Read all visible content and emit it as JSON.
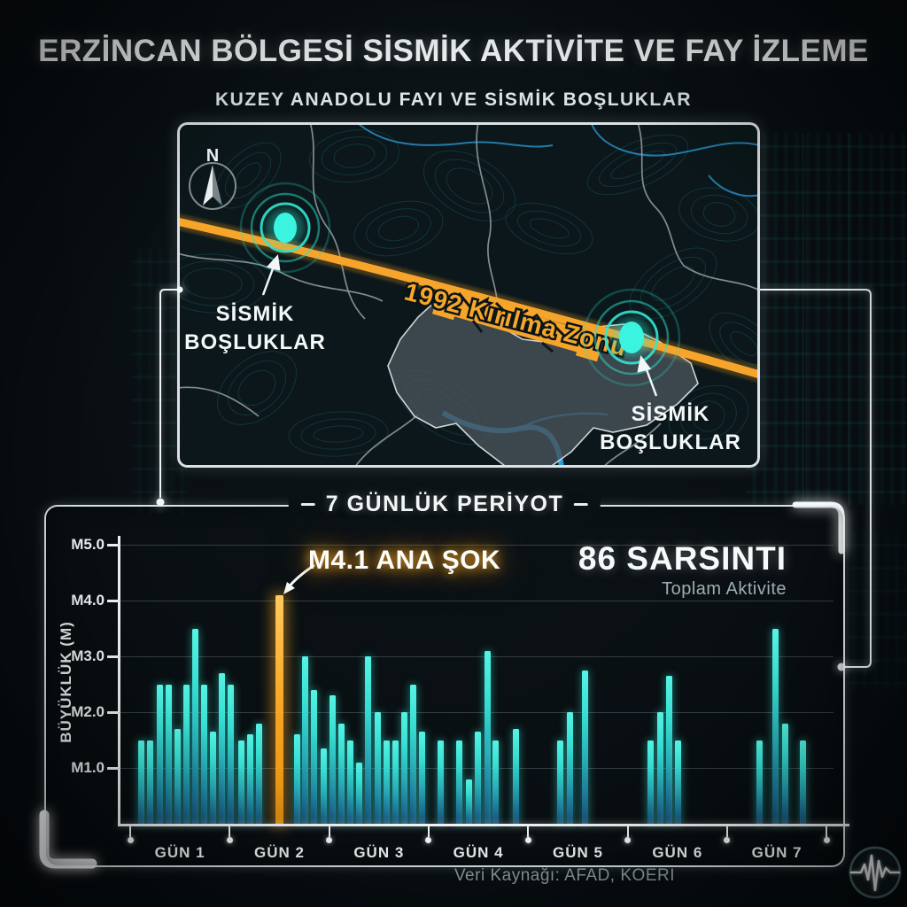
{
  "header": {
    "title": "ERZİNCAN BÖLGESİ SİSMİK AKTİVİTE VE FAY İZLEME",
    "subtitle": "KUZEY ANADOLU FAYI VE SİSMİK BOŞLUKLAR"
  },
  "map": {
    "compass_n": "N",
    "gap_label": {
      "line1": "SİSMİK",
      "line2": "BOŞLUKLAR"
    },
    "fracture_label": "1992 Kırılma Zonu",
    "features": {
      "fault_name": "Kuzey Anadolu Fayı",
      "seismic_gap_count": 2
    },
    "colors": {
      "fault_orange": "#f7a52a",
      "gap_teal": "#38f2de",
      "river_blue": "#2aa3e8",
      "border_gray": "#9aa4a8"
    }
  },
  "chart_data": {
    "type": "bar",
    "title": "7 GÜNLÜK PERİYOT",
    "ylabel": "BÜYÜKLÜK (M)",
    "y_ticks": [
      "M5.0",
      "M4.0",
      "M3.0",
      "M2.0",
      "M1.0"
    ],
    "y_tick_values": [
      5,
      4,
      3,
      2,
      1
    ],
    "ylim": [
      0,
      5
    ],
    "categories": [
      "GÜN 1",
      "GÜN 2",
      "GÜN 3",
      "GÜN 4",
      "GÜN 5",
      "GÜN 6",
      "GÜN 7"
    ],
    "annotations": {
      "mainshock_label": "M4.1 ANA ŞOK",
      "mainshock_magnitude": 4.1,
      "mainshock_day": "GÜN 2",
      "total_label": "86 SARSINTI",
      "total_sublabel": "Toplam Aktivite"
    },
    "series_note": "each bar = one earthquake magnitude (M); x = position in 7-day window (px), third item 1 = mainshock",
    "bars": [
      [
        157,
        1.5
      ],
      [
        167,
        1.5
      ],
      [
        178,
        2.5
      ],
      [
        188,
        2.5
      ],
      [
        198,
        1.7
      ],
      [
        208,
        2.5
      ],
      [
        218,
        3.5
      ],
      [
        228,
        2.5
      ],
      [
        238,
        1.65
      ],
      [
        248,
        2.7
      ],
      [
        258,
        2.5
      ],
      [
        270,
        1.5
      ],
      [
        280,
        1.6
      ],
      [
        290,
        1.8
      ],
      [
        313,
        4.1,
        1
      ],
      [
        333,
        1.6
      ],
      [
        342,
        3.0
      ],
      [
        352,
        2.4
      ],
      [
        363,
        1.35
      ],
      [
        373,
        2.3
      ],
      [
        383,
        1.8
      ],
      [
        393,
        1.5
      ],
      [
        403,
        1.1
      ],
      [
        413,
        3.0
      ],
      [
        424,
        2.0
      ],
      [
        434,
        1.5
      ],
      [
        444,
        1.5
      ],
      [
        454,
        2.0
      ],
      [
        464,
        2.5
      ],
      [
        474,
        1.65
      ],
      [
        495,
        1.5
      ],
      [
        516,
        1.5
      ],
      [
        527,
        0.8
      ],
      [
        537,
        1.65
      ],
      [
        548,
        3.1
      ],
      [
        557,
        1.5
      ],
      [
        580,
        1.7
      ],
      [
        630,
        1.5
      ],
      [
        641,
        2.0
      ],
      [
        658,
        2.75
      ],
      [
        732,
        1.5
      ],
      [
        743,
        2.0
      ],
      [
        753,
        2.65
      ],
      [
        763,
        1.5
      ],
      [
        855,
        1.5
      ],
      [
        873,
        3.5
      ],
      [
        884,
        1.8
      ],
      [
        904,
        1.5
      ]
    ],
    "bar_color": "#36ded2",
    "mainshock_color": "#f8a926",
    "legend_position": "none",
    "grid": true
  },
  "footer": {
    "source": "Veri Kaynağı: AFAD, KOERI",
    "logo": "seismograph-icon"
  },
  "colors": {
    "background": "#090f12",
    "panel_border": "#ebf2f4",
    "accent_teal": "#3ae8d8",
    "accent_orange": "#f5a623"
  }
}
